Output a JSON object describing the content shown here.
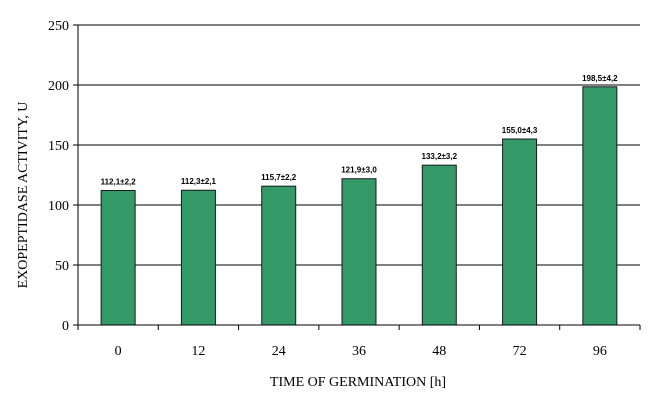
{
  "chart_data": {
    "type": "bar",
    "categories": [
      "0",
      "12",
      "24",
      "36",
      "48",
      "72",
      "96"
    ],
    "values": [
      112.1,
      112.3,
      115.7,
      121.9,
      133.2,
      155.0,
      198.5
    ],
    "data_labels": [
      "112,1±2,2",
      "112,3±2,1",
      "115,7±2,2",
      "121,9±3,0",
      "133,2±3,2",
      "155,0±4,3",
      "198,5±4,2"
    ],
    "title": "",
    "xlabel": "TIME OF GERMINATION [h]",
    "ylabel": "EXOPEPTIDASE ACTIVITY, U",
    "ylim": [
      0,
      250
    ],
    "yticks": [
      0,
      50,
      100,
      150,
      200,
      250
    ],
    "grid": true,
    "legend": "none",
    "colors": {
      "bar_fill": "#339966",
      "bar_stroke": "#1a1a1a",
      "grid": "#000000",
      "background": "#ffffff"
    }
  }
}
